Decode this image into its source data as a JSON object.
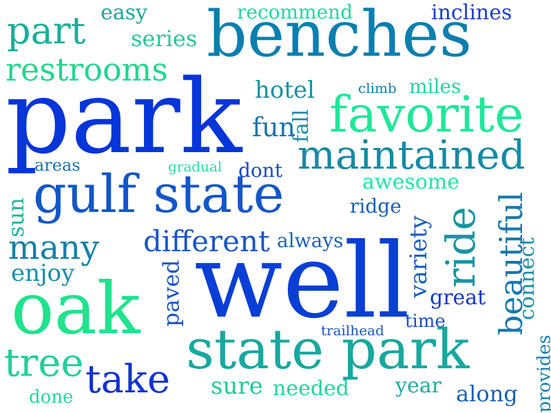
{
  "words": [
    {
      "text": "benches",
      "color": "#0a7fb0"
    },
    {
      "text": "park",
      "color": "#0635d9"
    },
    {
      "text": "well",
      "color": "#0a3fd6"
    },
    {
      "text": "gulf state",
      "color": "#1356c9"
    },
    {
      "text": "state park",
      "color": "#17a8a0"
    },
    {
      "text": "oak",
      "color": "#1fe38d"
    },
    {
      "text": "favorite",
      "color": "#20e79a"
    },
    {
      "text": "maintained",
      "color": "#158aa6"
    },
    {
      "text": "part",
      "color": "#16b09a"
    },
    {
      "text": "restrooms",
      "color": "#21d68d"
    },
    {
      "text": "easy",
      "color": "#15a79a"
    },
    {
      "text": "recommend",
      "color": "#1fd8a0"
    },
    {
      "text": "inclines",
      "color": "#1a3fc9"
    },
    {
      "text": "series",
      "color": "#21c79b"
    },
    {
      "text": "hotel",
      "color": "#148fa3"
    },
    {
      "text": "climb",
      "color": "#1577a8"
    },
    {
      "text": "miles",
      "color": "#20d5a2"
    },
    {
      "text": "fun",
      "color": "#1575b0"
    },
    {
      "text": "fall",
      "color": "#1c8aaa"
    },
    {
      "text": "areas",
      "color": "#1a72ad"
    },
    {
      "text": "gradual",
      "color": "#23e0a0"
    },
    {
      "text": "dont",
      "color": "#1a4bbf"
    },
    {
      "text": "awesome",
      "color": "#20e6a4"
    },
    {
      "text": "ridge",
      "color": "#1560b8"
    },
    {
      "text": "sun",
      "color": "#20b79c"
    },
    {
      "text": "many",
      "color": "#1580a8"
    },
    {
      "text": "different",
      "color": "#1a55c5"
    },
    {
      "text": "always",
      "color": "#1a62bd"
    },
    {
      "text": "enjoy",
      "color": "#158ea6"
    },
    {
      "text": "paved",
      "color": "#1a55c5"
    },
    {
      "text": "variety",
      "color": "#1a60c0"
    },
    {
      "text": "ride",
      "color": "#1596a3"
    },
    {
      "text": "beautiful",
      "color": "#1678ad"
    },
    {
      "text": "connect",
      "color": "#1a8fab"
    },
    {
      "text": "great",
      "color": "#1238c9"
    },
    {
      "text": "time",
      "color": "#1a4fc2"
    },
    {
      "text": "trailhead",
      "color": "#1a55c5"
    },
    {
      "text": "tree",
      "color": "#20d09a"
    },
    {
      "text": "take",
      "color": "#1233d0"
    },
    {
      "text": "sure",
      "color": "#21c79b"
    },
    {
      "text": "needed",
      "color": "#21d3a0"
    },
    {
      "text": "year",
      "color": "#1faa9e"
    },
    {
      "text": "done",
      "color": "#21d89a"
    },
    {
      "text": "along",
      "color": "#1560b8"
    },
    {
      "text": "provides",
      "color": "#1a80ae"
    }
  ]
}
